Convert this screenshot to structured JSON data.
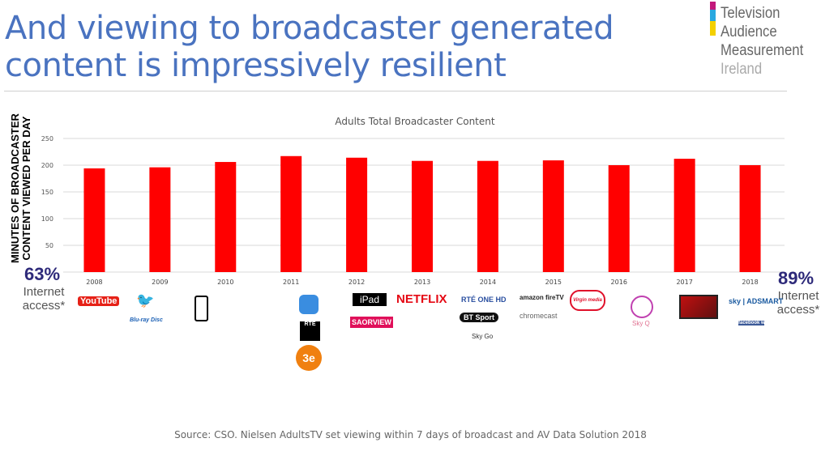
{
  "title_lines": [
    "And viewing to broadcaster generated",
    "content is impressively resilient"
  ],
  "logo": {
    "lines": [
      "Television",
      "Audience",
      "Measurement",
      "Ireland"
    ],
    "colors": [
      "#c2187a",
      "#29a8e0",
      "#f4d000"
    ]
  },
  "chart_data": {
    "type": "bar",
    "title": "Adults Total Broadcaster Content",
    "ylabel": "MINUTES OF BROADCASTER CONTENT VIEWED PER DAY",
    "xlabel": "",
    "categories": [
      "2008",
      "2009",
      "2010",
      "2011",
      "2012",
      "2013",
      "2014",
      "2015",
      "2016",
      "2017",
      "2018"
    ],
    "values": [
      194,
      196,
      206,
      217,
      214,
      208,
      208,
      209,
      200,
      212,
      200
    ],
    "ylim": [
      0,
      250
    ],
    "yticks": [
      50,
      100,
      150,
      200,
      250
    ],
    "grid": true,
    "bar_color": "#ff0000"
  },
  "left_stat": {
    "percent": "63%",
    "label": "Internet access*"
  },
  "right_stat": {
    "percent": "89%",
    "label": "Internet access*"
  },
  "logos": [
    {
      "text": "YouTube",
      "year": "2008"
    },
    {
      "text": "Twitter bird",
      "year": "2009"
    },
    {
      "text": "Blu-ray Disc",
      "year": "2009"
    },
    {
      "text": "Smartphone",
      "year": "2010"
    },
    {
      "text": "App Store",
      "year": "2011"
    },
    {
      "text": "RTÉ",
      "year": "2011"
    },
    {
      "text": "3e",
      "year": "2011"
    },
    {
      "text": "iPad",
      "year": "2012"
    },
    {
      "text": "SAORVIEW",
      "year": "2012"
    },
    {
      "text": "NETFLIX",
      "year": "2013"
    },
    {
      "text": "RTÉ ONE HD",
      "year": "2014"
    },
    {
      "text": "BT Sport",
      "year": "2014"
    },
    {
      "text": "Sky Go",
      "year": "2014"
    },
    {
      "text": "amazon fireTV",
      "year": "2015"
    },
    {
      "text": "chromecast",
      "year": "2015"
    },
    {
      "text": "Virgin media",
      "year": "2015"
    },
    {
      "text": "Sky Q",
      "year": "2016"
    },
    {
      "text": "Smart TV",
      "year": "2017"
    },
    {
      "text": "sky | ADSMART",
      "year": "2018"
    },
    {
      "text": "facebook watch",
      "year": "2018"
    }
  ],
  "source": "Source: CSO. Nielsen AdultsTV set viewing within 7 days of broadcast and AV Data Solution 2018"
}
